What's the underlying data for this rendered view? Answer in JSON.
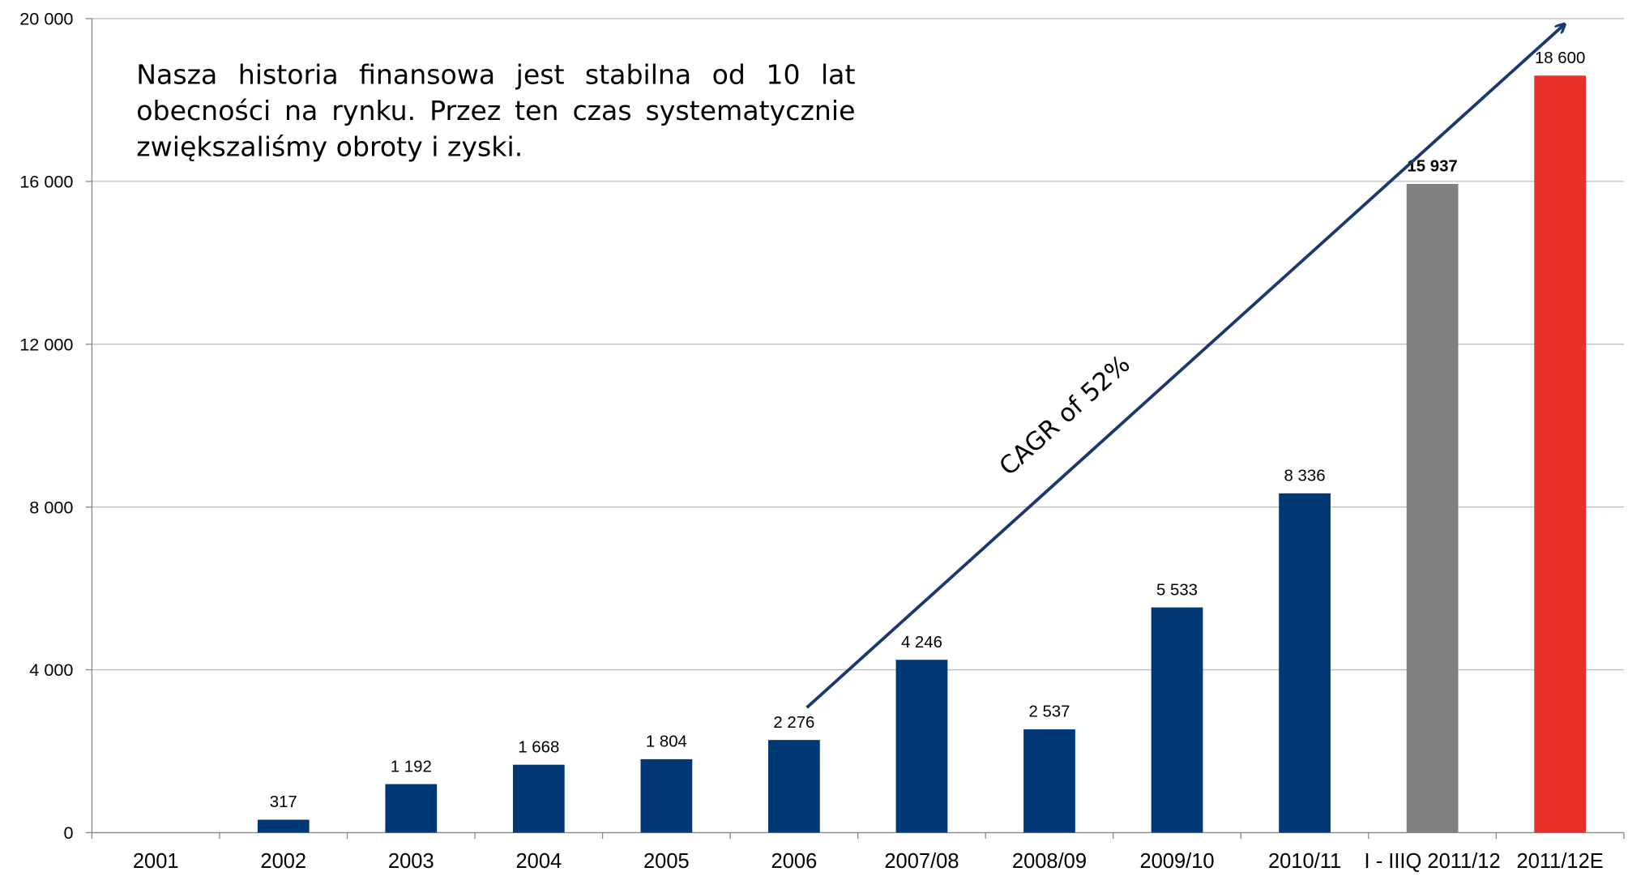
{
  "chart_data": {
    "type": "bar",
    "categories": [
      "2001",
      "2002",
      "2003",
      "2004",
      "2005",
      "2006",
      "2007/08",
      "2008/09",
      "2009/10",
      "2010/11",
      "I - IIIQ 2011/12",
      "2011/12E"
    ],
    "values": [
      null,
      317,
      1192,
      1668,
      1804,
      2276,
      4246,
      2537,
      5533,
      8336,
      15937,
      18600
    ],
    "value_labels": [
      null,
      "317",
      "1 192",
      "1 668",
      "1 804",
      "2 276",
      "4 246",
      "2 537",
      "5 533",
      "8 336",
      "15 937",
      "18 600"
    ],
    "colors": [
      "#003876",
      "#003876",
      "#003876",
      "#003876",
      "#003876",
      "#003876",
      "#003876",
      "#003876",
      "#003876",
      "#003876",
      "#808080",
      "#e8312a"
    ],
    "ylim": [
      0,
      20000
    ],
    "yticks": [
      0,
      {
        "value": 4000,
        "label": "4 000"
      },
      {
        "value": 8000,
        "label": "8 000"
      },
      {
        "value": 12000,
        "label": "12 000"
      },
      {
        "value": 16000,
        "label": "16 000"
      },
      {
        "value": 20000,
        "label": "20 000"
      }
    ],
    "grid": true,
    "annotation": "Nasza historia finansowa jest stabilna od 10 lat obecności na rynku. Przez ten czas systematycznie zwiększaliśmy obroty i zyski.",
    "arrow_label": "CAGR of 52%"
  }
}
